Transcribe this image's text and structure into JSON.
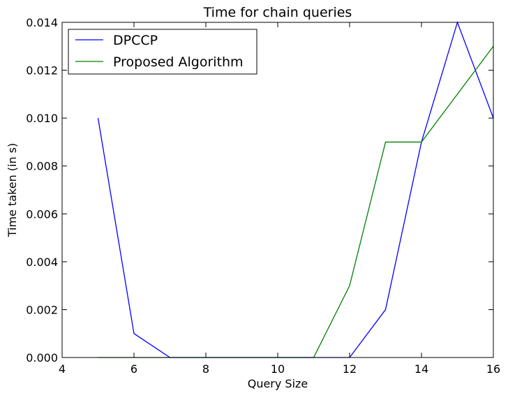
{
  "chart_data": {
    "type": "line",
    "title": "Time for chain queries",
    "xlabel": "Query Size",
    "ylabel": "Time taken (in s)",
    "xlim": [
      4,
      16
    ],
    "ylim": [
      0,
      0.014
    ],
    "grid": false,
    "legend_position": "top-left",
    "xticks": [
      {
        "value": 4,
        "label": "4"
      },
      {
        "value": 6,
        "label": "6"
      },
      {
        "value": 8,
        "label": "8"
      },
      {
        "value": 10,
        "label": "10"
      },
      {
        "value": 12,
        "label": "12"
      },
      {
        "value": 14,
        "label": "14"
      },
      {
        "value": 16,
        "label": "16"
      }
    ],
    "yticks": [
      {
        "value": 0,
        "label": "0.000"
      },
      {
        "value": 0.002,
        "label": "0.002"
      },
      {
        "value": 0.004,
        "label": "0.004"
      },
      {
        "value": 0.006,
        "label": "0.006"
      },
      {
        "value": 0.008,
        "label": "0.008"
      },
      {
        "value": 0.01,
        "label": "0.010"
      },
      {
        "value": 0.012,
        "label": "0.012"
      },
      {
        "value": 0.014,
        "label": "0.014"
      }
    ],
    "x": [
      5,
      6,
      7,
      8,
      9,
      10,
      11,
      12,
      13,
      14,
      15,
      16
    ],
    "series": [
      {
        "name": "DPCCP",
        "color": "#0000ff",
        "values": [
          0.01,
          0.001,
          0,
          0,
          0,
          0,
          0,
          0,
          0.002,
          0.009,
          0.014,
          0.01
        ]
      },
      {
        "name": "Proposed Algorithm",
        "color": "#008000",
        "values": [
          0,
          0,
          0,
          0,
          0,
          0,
          0,
          0.003,
          0.009,
          0.009,
          0.011,
          0.013
        ]
      }
    ]
  }
}
